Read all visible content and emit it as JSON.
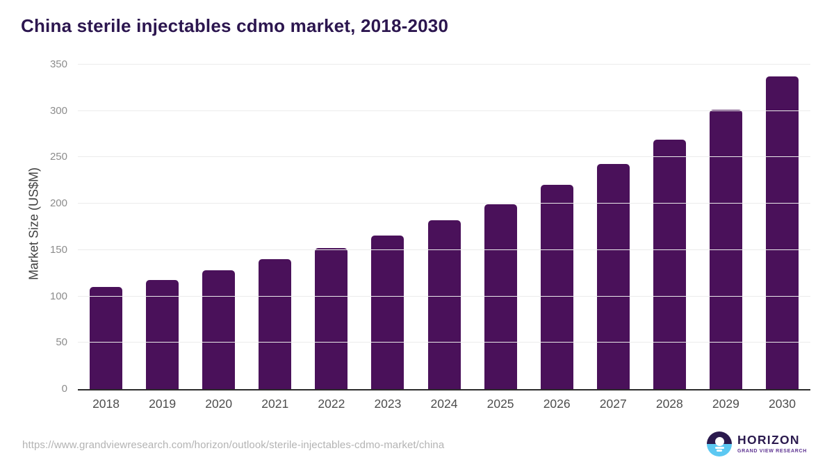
{
  "title": "China sterile injectables cdmo market, 2018-2030",
  "chart_data": {
    "type": "bar",
    "title": "China sterile injectables cdmo market, 2018-2030",
    "categories": [
      "2018",
      "2019",
      "2020",
      "2021",
      "2022",
      "2023",
      "2024",
      "2025",
      "2026",
      "2027",
      "2028",
      "2029",
      "2030"
    ],
    "values": [
      110,
      118,
      128,
      140,
      152,
      166,
      182,
      199,
      220,
      243,
      269,
      301,
      337
    ],
    "xlabel": "",
    "ylabel": "Market Size (US$M)",
    "ylim": [
      0,
      350
    ],
    "ytick_step": 50,
    "yticks": [
      0,
      50,
      100,
      150,
      200,
      250,
      300,
      350
    ],
    "grid": true,
    "legend": "none",
    "bar_color": "#4a115a"
  },
  "footer": {
    "source_url": "https://www.grandviewresearch.com/horizon/outlook/sterile-injectables-cdmo-market/china",
    "logo": {
      "title": "HORIZON",
      "subtitle": "GRAND VIEW RESEARCH"
    }
  },
  "colors": {
    "bar": "#4a115a",
    "title": "#2c164f",
    "grid": "#ebebeb",
    "axis": "#2b2b2b",
    "ytick": "#8c8c8c",
    "xlabel": "#4d4d4d",
    "axis-title": "#3f3f3f",
    "url": "#b3b3b3",
    "logo-dark": "#2b1a4e",
    "logo-blue": "#5cc8f2",
    "logo-purple": "#5c3190"
  }
}
